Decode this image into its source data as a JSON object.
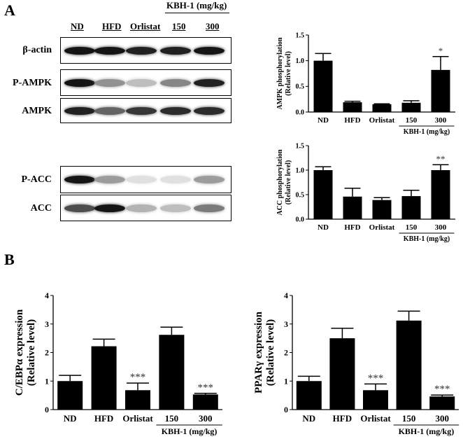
{
  "panel_a": {
    "label": "A",
    "kbh_header": "KBH-1 (mg/kg)",
    "lanes": [
      "ND",
      "HFD",
      "Orlistat",
      "150",
      "300"
    ],
    "blots": [
      {
        "name": "β-actin",
        "bands": [
          0.95,
          0.95,
          0.9,
          0.9,
          0.95
        ]
      },
      {
        "name": "P-AMPK",
        "bands": [
          0.95,
          0.4,
          0.2,
          0.45,
          0.9
        ]
      },
      {
        "name": "AMPK",
        "bands": [
          0.9,
          0.6,
          0.8,
          0.85,
          0.85
        ]
      },
      {
        "name": "P-ACC",
        "bands": [
          0.95,
          0.35,
          0.05,
          0.05,
          0.35
        ]
      },
      {
        "name": "ACC",
        "bands": [
          0.7,
          0.95,
          0.25,
          0.2,
          0.5
        ]
      }
    ]
  },
  "panel_b": {
    "label": "B"
  },
  "chart_data": [
    {
      "type": "bar",
      "ylabel_lines": [
        "AMPK phosphorylation",
        "(Relative level)"
      ],
      "categories": [
        "ND",
        "HFD",
        "Orlistat",
        "150",
        "300"
      ],
      "values": [
        1.0,
        0.19,
        0.15,
        0.18,
        0.82
      ],
      "errors": [
        0.14,
        0.02,
        0.01,
        0.04,
        0.26
      ],
      "annotations": [
        "",
        "",
        "",
        "",
        "*"
      ],
      "ylim": [
        0,
        1.5
      ],
      "yticks": [
        "0.0",
        "0.5",
        "1.0",
        "1.5"
      ],
      "group_label": "KBH-1 (mg/kg)"
    },
    {
      "type": "bar",
      "ylabel_lines": [
        "ACC phosphorylation",
        "(Relative level)"
      ],
      "categories": [
        "ND",
        "HFD",
        "Orlistat",
        "150",
        "300"
      ],
      "values": [
        1.0,
        0.46,
        0.39,
        0.47,
        1.0
      ],
      "errors": [
        0.07,
        0.17,
        0.05,
        0.12,
        0.11
      ],
      "annotations": [
        "",
        "",
        "",
        "",
        "**"
      ],
      "ylim": [
        0,
        1.5
      ],
      "yticks": [
        "0.0",
        "0.5",
        "1.0",
        "1.5"
      ],
      "group_label": "KBH-1 (mg/kg)"
    },
    {
      "type": "bar",
      "ylabel_lines": [
        "C/EBPα expression",
        "(Relative level)"
      ],
      "categories": [
        "ND",
        "HFD",
        "Orlistat",
        "150",
        "300"
      ],
      "values": [
        1.0,
        2.22,
        0.68,
        2.62,
        0.53
      ],
      "errors": [
        0.2,
        0.25,
        0.25,
        0.27,
        0.04
      ],
      "annotations": [
        "",
        "",
        "***",
        "",
        "***"
      ],
      "ylim": [
        0,
        4
      ],
      "yticks": [
        "0",
        "1",
        "2",
        "3",
        "4"
      ],
      "group_label": "KBH-1 (mg/kg)"
    },
    {
      "type": "bar",
      "ylabel_lines": [
        "PPARγ expression",
        "(Relative level)"
      ],
      "categories": [
        "ND",
        "HFD",
        "Orlistat",
        "150",
        "300"
      ],
      "values": [
        1.0,
        2.5,
        0.68,
        3.12,
        0.46
      ],
      "errors": [
        0.17,
        0.35,
        0.22,
        0.33,
        0.05
      ],
      "annotations": [
        "",
        "",
        "***",
        "",
        "***"
      ],
      "ylim": [
        0,
        4
      ],
      "yticks": [
        "0",
        "1",
        "2",
        "3",
        "4"
      ],
      "group_label": "KBH-1 (mg/kg)"
    }
  ]
}
